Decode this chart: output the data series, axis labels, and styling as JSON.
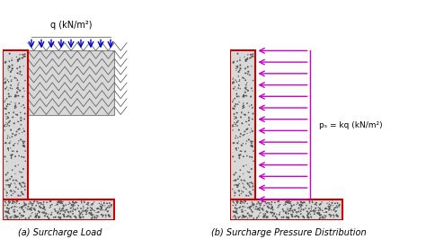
{
  "title": "",
  "fig_width": 4.74,
  "fig_height": 2.76,
  "dpi": 100,
  "bg_color": "#ffffff",
  "wall_color": "#c8c8c8",
  "wall_edge_color": "#cc0000",
  "soil_color": "#d0d0d0",
  "arrow_down_color": "#0000cc",
  "arrow_left_color": "#cc00cc",
  "label_a": "(a) Surcharge Load",
  "label_b": "(b) Surcharge Pressure Distribution",
  "q_label": "q (kN/m²)",
  "ps_label": "pₛ = kq (kN/m²)"
}
